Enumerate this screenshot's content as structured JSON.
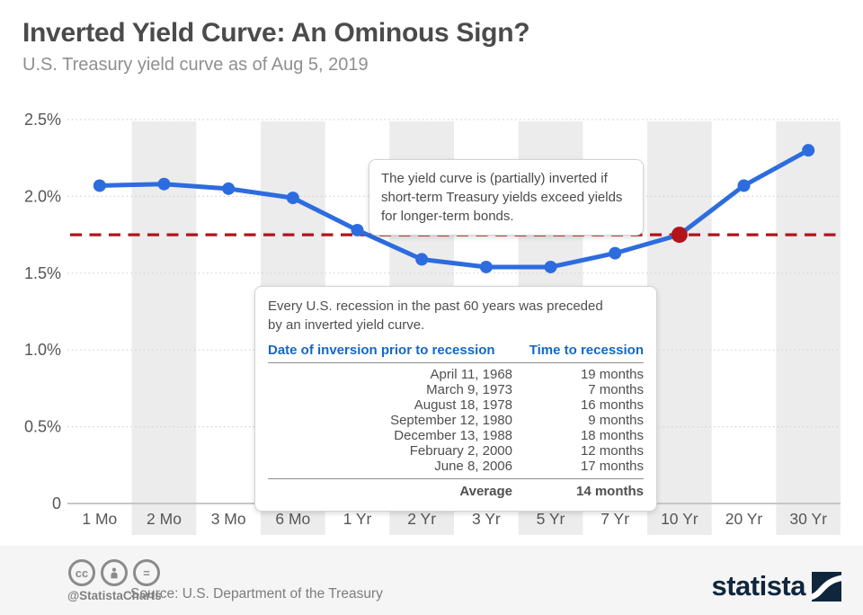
{
  "chart_data": {
    "type": "line",
    "title": "Inverted Yield Curve: An Ominous Sign?",
    "subtitle": "U.S. Treasury yield curve as of Aug 5, 2019",
    "categories": [
      "1 Mo",
      "2 Mo",
      "3 Mo",
      "6 Mo",
      "1 Yr",
      "2 Yr",
      "3 Yr",
      "5 Yr",
      "7 Yr",
      "10 Yr",
      "20 Yr",
      "30 Yr"
    ],
    "values": [
      2.07,
      2.08,
      2.05,
      1.99,
      1.78,
      1.59,
      1.54,
      1.54,
      1.63,
      1.75,
      2.07,
      2.3
    ],
    "xlabel": "",
    "ylabel": "",
    "ylim": [
      0,
      2.5
    ],
    "yticks": [
      0,
      0.5,
      1.0,
      1.5,
      2.0,
      2.5
    ],
    "ytick_labels": [
      "0",
      "0.5%",
      "1.0%",
      "1.5%",
      "2.0%",
      "2.5%"
    ],
    "grid": true,
    "threshold_value": 1.75,
    "highlight_index": 9,
    "highlight_category": "10 Yr",
    "line_color": "#2d6cdf",
    "threshold_color": "#b2141a",
    "band_color": "#ececec"
  },
  "annotation": {
    "text": "The yield curve is (partially) inverted if short-term Treasury yields exceed yields for longer-term bonds."
  },
  "recession_table": {
    "intro": "Every U.S. recession in the past 60 years was preceded by an inverted yield curve.",
    "col1_header": "Date of inversion prior to recession",
    "col2_header": "Time to recession",
    "rows": [
      {
        "date": "April 11, 1968",
        "time": "19 months"
      },
      {
        "date": "March 9, 1973",
        "time": "7 months"
      },
      {
        "date": "August 18, 1978",
        "time": "16 months"
      },
      {
        "date": "September 12, 1980",
        "time": "9 months"
      },
      {
        "date": "December 13, 1988",
        "time": "18 months"
      },
      {
        "date": "February 2, 2000",
        "time": "12 months"
      },
      {
        "date": "June 8, 2006",
        "time": "17 months"
      }
    ],
    "summary": {
      "label": "Average",
      "value": "14 months"
    }
  },
  "footer": {
    "handle": "@StatistaCharts",
    "source": "Source: U.S. Department of the Treasury",
    "brand": "statista",
    "icon_glyphs": {
      "cc": "cc",
      "nd": "="
    },
    "brand_color": "#0f263d"
  }
}
